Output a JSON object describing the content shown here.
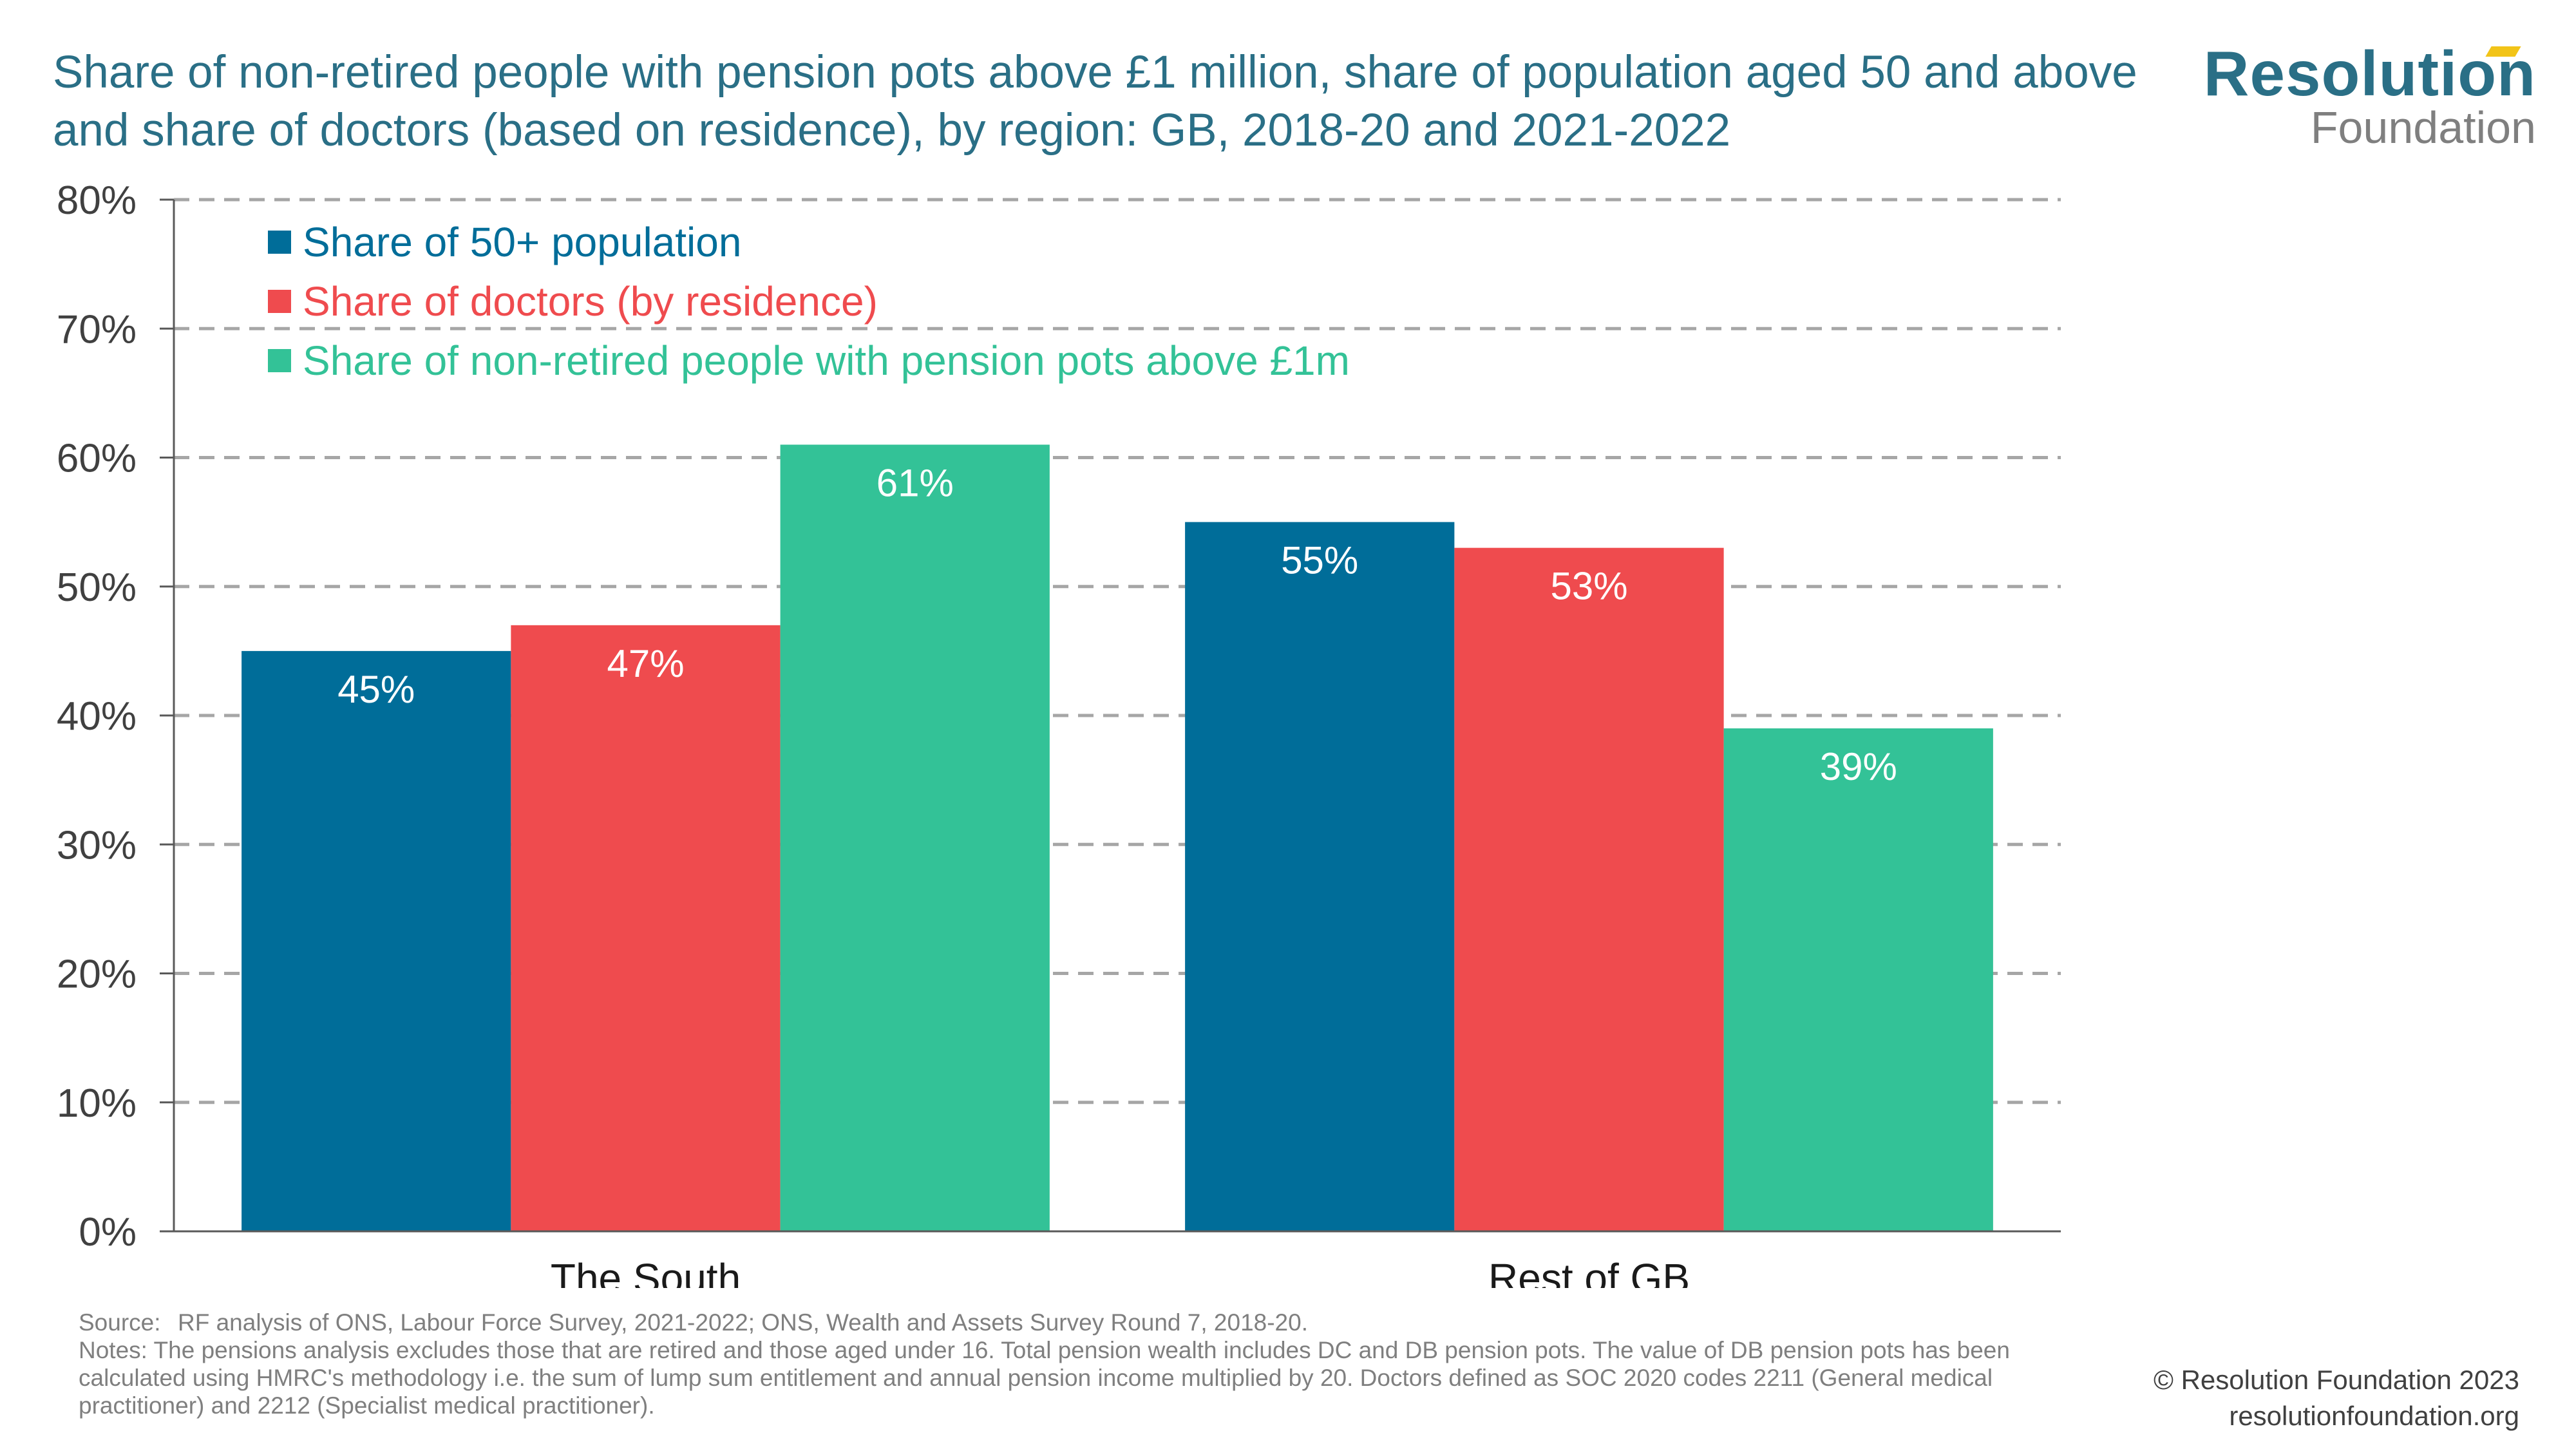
{
  "title": "Share of non-retired people with pension pots above £1 million, share of population aged 50 and above and share of doctors (based on residence), by region: GB, 2018-20 and 2021-2022",
  "logo": {
    "main": "Resolution",
    "sub": "Foundation"
  },
  "chart_data": {
    "type": "bar",
    "categories": [
      "The South",
      "Rest of GB"
    ],
    "series": [
      {
        "name": "Share of 50+ population",
        "values": [
          45,
          55
        ],
        "labels": [
          "45%",
          "55%"
        ],
        "color": "#006d99"
      },
      {
        "name": "Share of doctors (by residence)",
        "values": [
          47,
          53
        ],
        "labels": [
          "47%",
          "53%"
        ],
        "color": "#ef4b4e"
      },
      {
        "name": "Share of non-retired people with pension pots above £1m",
        "values": [
          61,
          39
        ],
        "labels": [
          "61%",
          "39%"
        ],
        "color": "#33c297"
      }
    ],
    "ylim": [
      0,
      80
    ],
    "yticks": [
      0,
      10,
      20,
      30,
      40,
      50,
      60,
      70,
      80
    ],
    "ytick_labels": [
      "0%",
      "10%",
      "20%",
      "30%",
      "40%",
      "50%",
      "60%",
      "70%",
      "80%"
    ],
    "grid": true,
    "legend_position": "top-left",
    "axis_color": "#595959",
    "grid_color": "#a6a6a6"
  },
  "notes": {
    "source_label": "Source:",
    "source_text": "RF analysis of ONS, Labour Force Survey, 2021-2022; ONS, Wealth and Assets Survey Round 7, 2018-20.",
    "notes_text": "Notes: The pensions analysis excludes those that are retired and those aged under 16. Total pension wealth includes DC and DB pension pots. The value of DB pension pots has been calculated using HMRC's methodology i.e. the sum of lump sum entitlement and annual pension income multiplied by 20. Doctors defined as SOC 2020 codes 2211 (General medical practitioner) and 2212 (Specialist medical practitioner)."
  },
  "footer": {
    "copyright": "© Resolution Foundation 2023",
    "website": "resolutionfoundation.org"
  }
}
